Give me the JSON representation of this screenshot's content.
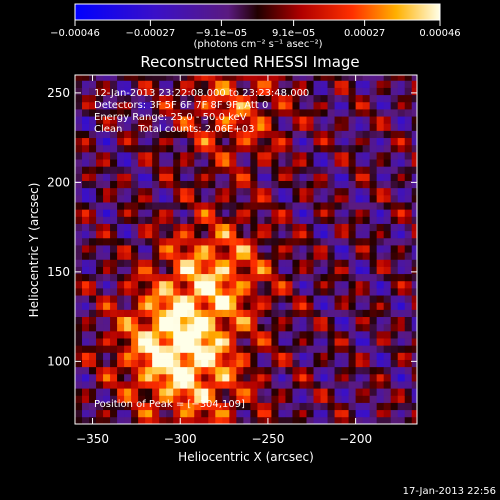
{
  "chart_data": {
    "type": "heatmap",
    "title": "Reconstructed RHESSI Image",
    "xlabel": "Heliocentric X (arcsec)",
    "ylabel": "Heliocentric Y (arcsec)",
    "xlim": [
      -360,
      -165
    ],
    "ylim": [
      65,
      260
    ],
    "x_ticks": [
      -350,
      -300,
      -250,
      -200
    ],
    "x_tick_labels": [
      "−350",
      "−300",
      "−250",
      "−200"
    ],
    "y_ticks": [
      100,
      150,
      200,
      250
    ],
    "y_tick_labels": [
      "100",
      "150",
      "200",
      "250"
    ],
    "colorbar": {
      "colormap": "blue-purple-red-yellow-white",
      "range": [
        -0.00046,
        0.00046
      ],
      "ticks": [
        -0.00046,
        -0.00027,
        -9.1e-05,
        9.1e-05,
        0.00027,
        0.00046
      ],
      "tick_labels": [
        "−0.00046",
        "−0.00027",
        "−9.1e−05",
        "9.1e−05",
        "0.00027",
        "0.00046"
      ],
      "units_label": "(photons cm⁻² s⁻¹ asec⁻²)"
    },
    "sources": [
      {
        "x": -304,
        "y": 109,
        "peak": 0.00046
      },
      {
        "x": -280,
        "y": 150,
        "peak": 0.00033
      },
      {
        "x": -270,
        "y": 240,
        "peak": 0.00024
      },
      {
        "x": -285,
        "y": 80,
        "peak": 0.00016
      }
    ],
    "annotations": {
      "time_range": "12-Jan-2013 23:22:08.000 to 23:23:48.000",
      "detectors": "Detectors: 3F 5F 6F 7F 8F 9F, Att 0",
      "energy": "Energy Range: 25.0 - 50.0 keV",
      "clean": "Clean     Total counts: 2.06E+03",
      "peak_position": "Position of Peak = [−304,109]"
    }
  },
  "footer": {
    "timestamp": "17-Jan-2013 22:56"
  }
}
